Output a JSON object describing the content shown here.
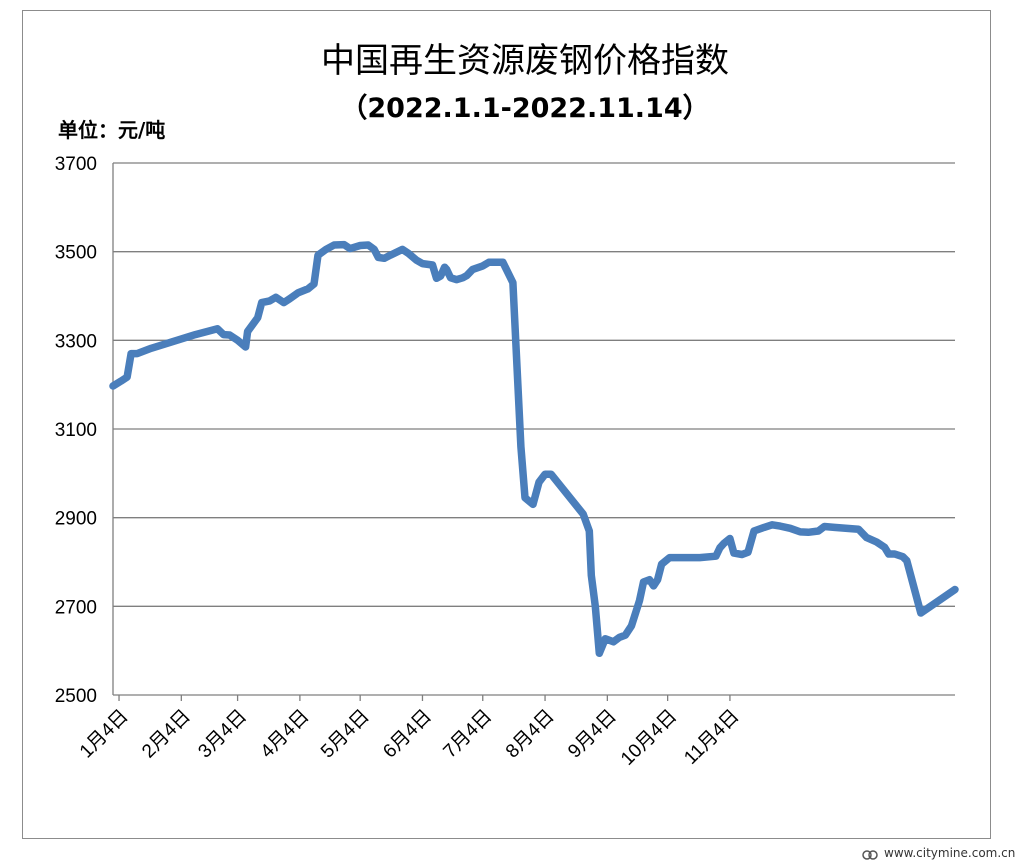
{
  "chart_data": {
    "type": "line",
    "title": "中国再生资源废钢价格指数",
    "subtitle": "（2022.1.1-2022.11.14）",
    "unit_label": "单位：元/吨",
    "ylim": [
      2500,
      3700
    ],
    "yticks": [
      2500,
      2700,
      2900,
      3100,
      3300,
      3500,
      3700
    ],
    "grid": true,
    "line_color": "#4a7ebb",
    "xticks": [
      {
        "label": "1月4日",
        "day": 4
      },
      {
        "label": "2月4日",
        "day": 35
      },
      {
        "label": "3月4日",
        "day": 63
      },
      {
        "label": "4月4日",
        "day": 94
      },
      {
        "label": "5月4日",
        "day": 124
      },
      {
        "label": "6月4日",
        "day": 155
      },
      {
        "label": "7月4日",
        "day": 185
      },
      {
        "label": "8月4日",
        "day": 216
      },
      {
        "label": "9月4日",
        "day": 247
      },
      {
        "label": "10月4日",
        "day": 277
      },
      {
        "label": "11月4日",
        "day": 308
      }
    ],
    "series": [
      {
        "points": [
          [
            1,
            3197
          ],
          [
            5,
            3208
          ],
          [
            8,
            3217
          ],
          [
            10,
            3270
          ],
          [
            13,
            3270
          ],
          [
            20,
            3282
          ],
          [
            30,
            3296
          ],
          [
            42,
            3313
          ],
          [
            53,
            3326
          ],
          [
            56,
            3313
          ],
          [
            59,
            3312
          ],
          [
            63,
            3300
          ],
          [
            67,
            3285
          ],
          [
            68,
            3320
          ],
          [
            73,
            3351
          ],
          [
            75,
            3385
          ],
          [
            79,
            3389
          ],
          [
            82,
            3397
          ],
          [
            86,
            3385
          ],
          [
            89,
            3394
          ],
          [
            93,
            3407
          ],
          [
            98,
            3416
          ],
          [
            101,
            3427
          ],
          [
            103,
            3492
          ],
          [
            107,
            3505
          ],
          [
            111,
            3515
          ],
          [
            116,
            3516
          ],
          [
            119,
            3507
          ],
          [
            124,
            3514
          ],
          [
            128,
            3515
          ],
          [
            131,
            3505
          ],
          [
            133,
            3487
          ],
          [
            136,
            3485
          ],
          [
            139,
            3492
          ],
          [
            145,
            3505
          ],
          [
            148,
            3496
          ],
          [
            152,
            3481
          ],
          [
            155,
            3473
          ],
          [
            160,
            3470
          ],
          [
            162,
            3440
          ],
          [
            164,
            3445
          ],
          [
            166,
            3465
          ],
          [
            167,
            3460
          ],
          [
            169,
            3441
          ],
          [
            172,
            3437
          ],
          [
            175,
            3441
          ],
          [
            177,
            3446
          ],
          [
            180,
            3460
          ],
          [
            185,
            3468
          ],
          [
            188,
            3476
          ],
          [
            192,
            3476
          ],
          [
            195,
            3476
          ],
          [
            200,
            3430
          ],
          [
            204,
            3060
          ],
          [
            206,
            2945
          ],
          [
            210,
            2930
          ],
          [
            213,
            2980
          ],
          [
            216,
            2998
          ],
          [
            219,
            2998
          ],
          [
            235,
            2908
          ],
          [
            238,
            2870
          ],
          [
            239,
            2770
          ],
          [
            241,
            2700
          ],
          [
            243,
            2594
          ],
          [
            246,
            2627
          ],
          [
            250,
            2620
          ],
          [
            253,
            2630
          ],
          [
            256,
            2635
          ],
          [
            259,
            2656
          ],
          [
            263,
            2713
          ],
          [
            265,
            2755
          ],
          [
            268,
            2760
          ],
          [
            270,
            2746
          ],
          [
            272,
            2760
          ],
          [
            274,
            2795
          ],
          [
            278,
            2810
          ],
          [
            293,
            2810
          ],
          [
            301,
            2813
          ],
          [
            303,
            2832
          ],
          [
            305,
            2842
          ],
          [
            308,
            2853
          ],
          [
            310,
            2820
          ],
          [
            314,
            2817
          ],
          [
            317,
            2822
          ],
          [
            320,
            2870
          ],
          [
            325,
            2878
          ],
          [
            329,
            2884
          ],
          [
            333,
            2881
          ],
          [
            338,
            2876
          ],
          [
            343,
            2868
          ],
          [
            347,
            2867
          ],
          [
            352,
            2870
          ],
          [
            355,
            2880
          ],
          [
            360,
            2878
          ],
          [
            372,
            2874
          ],
          [
            376,
            2855
          ],
          [
            381,
            2845
          ],
          [
            385,
            2833
          ],
          [
            387,
            2818
          ],
          [
            390,
            2818
          ],
          [
            394,
            2812
          ],
          [
            396,
            2803
          ],
          [
            403,
            2685
          ],
          [
            420,
            2738
          ]
        ]
      }
    ]
  },
  "watermark": "www.citymine.com.cn"
}
